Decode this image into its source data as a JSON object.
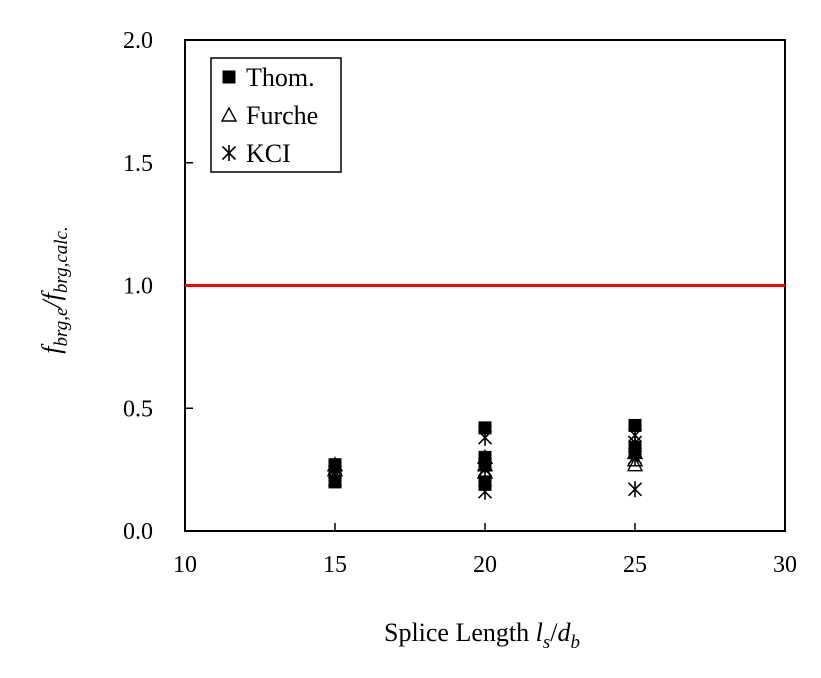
{
  "chart_data": {
    "type": "scatter",
    "xlim": [
      10,
      30
    ],
    "ylim": [
      0.0,
      2.0
    ],
    "x_ticks": [
      "10",
      "15",
      "20",
      "25",
      "30"
    ],
    "y_ticks": [
      "0.0",
      "0.5",
      "1.0",
      "1.5",
      "2.0"
    ],
    "xlabel": {
      "text": "Splice Length ",
      "l": "l",
      "s": "s",
      "slash": "/",
      "d": "d",
      "b": "b"
    },
    "ylabel": {
      "f1": "f",
      "sub1": "brg,e",
      "slash": "/",
      "f2": "f",
      "sub2": "brg,calc."
    },
    "grid": false,
    "legend_position": "top-left",
    "reference_line": {
      "y": 1.0,
      "color": "#ff0000"
    },
    "series": [
      {
        "name": "Thom.",
        "marker": "filled-square",
        "color": "#000000",
        "points": [
          [
            15,
            0.27
          ],
          [
            15,
            0.26
          ],
          [
            15,
            0.2
          ],
          [
            20,
            0.42
          ],
          [
            20,
            0.3
          ],
          [
            20,
            0.27
          ],
          [
            20,
            0.2
          ],
          [
            20,
            0.19
          ],
          [
            25,
            0.43
          ],
          [
            25,
            0.34
          ],
          [
            25,
            0.32
          ]
        ]
      },
      {
        "name": "Furche",
        "marker": "open-triangle",
        "color": "#000000",
        "points": [
          [
            15,
            0.27
          ],
          [
            15,
            0.25
          ],
          [
            20,
            0.3
          ],
          [
            20,
            0.27
          ],
          [
            20,
            0.24
          ],
          [
            25,
            0.32
          ],
          [
            25,
            0.29
          ],
          [
            25,
            0.27
          ]
        ]
      },
      {
        "name": "KCI",
        "marker": "asterisk",
        "color": "#000000",
        "points": [
          [
            15,
            0.24
          ],
          [
            15,
            0.21
          ],
          [
            20,
            0.38
          ],
          [
            20,
            0.27
          ],
          [
            20,
            0.25
          ],
          [
            20,
            0.16
          ],
          [
            25,
            0.39
          ],
          [
            25,
            0.36
          ],
          [
            25,
            0.3
          ],
          [
            25,
            0.17
          ]
        ]
      }
    ]
  }
}
